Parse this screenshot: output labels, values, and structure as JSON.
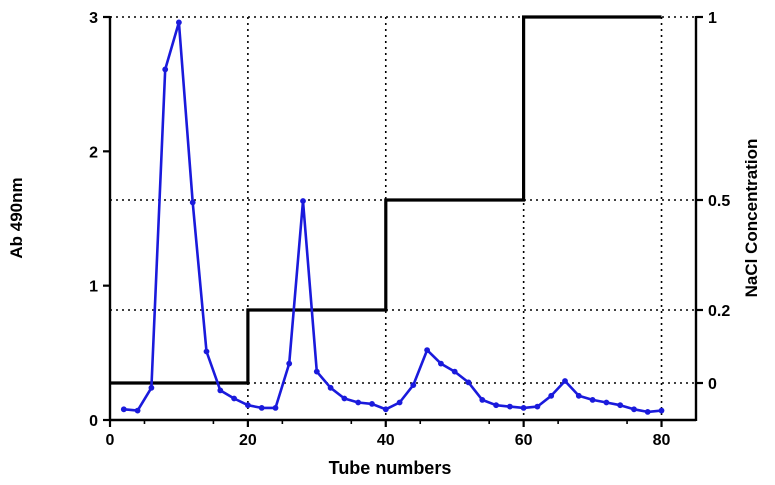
{
  "chart_data": {
    "type": "line",
    "title": "",
    "xlabel": "Tube numbers",
    "ylabel_left": "Ab 490nm",
    "ylabel_right": "NaCl Concentration",
    "xlim": [
      0,
      85
    ],
    "ylim_left": [
      0,
      3
    ],
    "xticks": [
      "0",
      "20",
      "40",
      "60",
      "80"
    ],
    "yticks_left": [
      "0",
      "1",
      "2",
      "3"
    ],
    "yticks_right": [
      "0",
      "0.2",
      "0.5",
      "1"
    ],
    "grid": "dotted, at x = 20, 40, 60, 80 and at right-axis levels 0, 0.2, 0.5, 1",
    "series": [
      {
        "axis": "left",
        "color": "#1a1adc",
        "marker": "circle",
        "x": [
          2,
          4,
          6,
          8,
          10,
          12,
          14,
          16,
          18,
          20,
          22,
          24,
          26,
          28,
          30,
          32,
          34,
          36,
          38,
          40,
          42,
          44,
          46,
          48,
          50,
          52,
          54,
          56,
          58,
          60,
          62,
          64,
          66,
          68,
          70,
          72,
          74,
          76,
          78,
          80
        ],
        "y": [
          0.08,
          0.07,
          0.24,
          2.61,
          2.96,
          1.62,
          0.51,
          0.22,
          0.16,
          0.11,
          0.09,
          0.09,
          0.42,
          1.63,
          0.36,
          0.24,
          0.16,
          0.13,
          0.12,
          0.08,
          0.13,
          0.26,
          0.52,
          0.42,
          0.36,
          0.28,
          0.15,
          0.11,
          0.1,
          0.09,
          0.1,
          0.18,
          0.29,
          0.18,
          0.15,
          0.13,
          0.11,
          0.08,
          0.06,
          0.07
        ]
      },
      {
        "axis": "right",
        "color": "#000000",
        "marker": "none",
        "shape": "step",
        "x": [
          0,
          20,
          20,
          40,
          40,
          60,
          60,
          80
        ],
        "y": [
          0,
          0,
          0.2,
          0.2,
          0.5,
          0.5,
          1,
          1
        ]
      }
    ]
  }
}
